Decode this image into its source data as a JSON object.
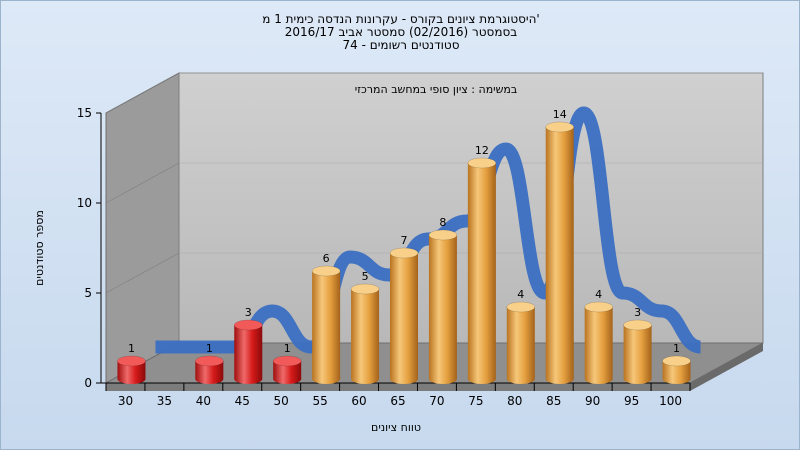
{
  "header": {
    "title_line1": "היסטוגרמת ציונים בקורס - עקרונות הנדסה כימית 1 מ'",
    "title_line2": "בסמסטר (02/2016) סמסטר אביב 2016/17",
    "title_line3": "סטודנטים רשומים - 74"
  },
  "chart_data": {
    "type": "bar",
    "title": "במשימה : ציון סופי במחשב המרכזי",
    "xlabel": "טווח ציונים",
    "ylabel": "מספר סטודנטים",
    "categories": [
      "30",
      "35",
      "40",
      "45",
      "50",
      "55",
      "60",
      "65",
      "70",
      "75",
      "80",
      "85",
      "90",
      "95",
      "100"
    ],
    "y_ticks": [
      "0",
      "5",
      "10",
      "15"
    ],
    "ylim": [
      0,
      15
    ],
    "bars": [
      {
        "category": "30",
        "value": 1,
        "color": "red"
      },
      {
        "category": "40",
        "value": 1,
        "color": "red"
      },
      {
        "category": "45",
        "value": 3,
        "color": "red"
      },
      {
        "category": "50",
        "value": 1,
        "color": "red"
      },
      {
        "category": "55",
        "value": 6,
        "color": "orange"
      },
      {
        "category": "60",
        "value": 5,
        "color": "orange"
      },
      {
        "category": "65",
        "value": 7,
        "color": "orange"
      },
      {
        "category": "70",
        "value": 8,
        "color": "orange"
      },
      {
        "category": "75",
        "value": 12,
        "color": "orange"
      },
      {
        "category": "80",
        "value": 4,
        "color": "orange"
      },
      {
        "category": "85",
        "value": 14,
        "color": "orange"
      },
      {
        "category": "90",
        "value": 4,
        "color": "orange"
      },
      {
        "category": "95",
        "value": 3,
        "color": "orange"
      },
      {
        "category": "100",
        "value": 1,
        "color": "orange"
      }
    ],
    "colors": {
      "red": "#d61a1a",
      "orange": "#e8a23c",
      "curve": "#3b6fc2",
      "back_wall": "#c4c4c4",
      "floor": "#8e8e8e",
      "left_wall": "#9a9a9a"
    }
  }
}
